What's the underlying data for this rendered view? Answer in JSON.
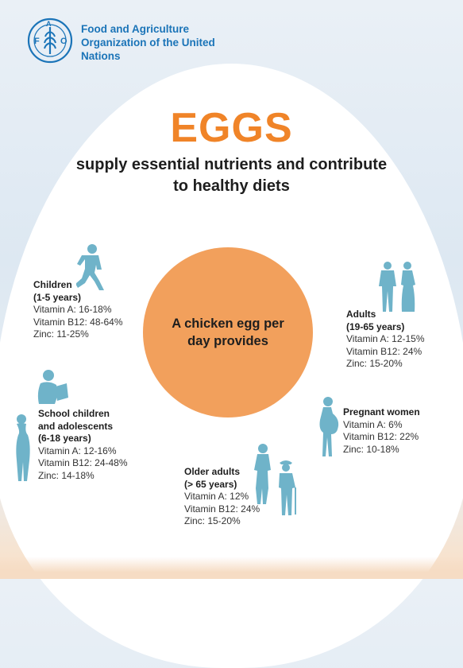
{
  "header": {
    "org_name": "Food and Agriculture Organization of the United Nations",
    "logo_letters": "FAO",
    "logo_motto": "FIAT PANIS"
  },
  "title": "EGGS",
  "subtitle": "supply essential nutrients and contribute to healthy diets",
  "center": "A chicken egg per day provides",
  "groups": {
    "children": {
      "title_line1": "Children",
      "title_line2": "(1-5 years)",
      "vitamin_a": "Vitamin A: 16-18%",
      "vitamin_b12": "Vitamin B12: 48-64%",
      "zinc": "Zinc: 11-25%"
    },
    "school": {
      "title_line1": "School children",
      "title_line2": "and adolescents",
      "title_line3": "(6-18 years)",
      "vitamin_a": "Vitamin A: 12-16%",
      "vitamin_b12": "Vitamin B12: 24-48%",
      "zinc": "Zinc: 14-18%"
    },
    "older": {
      "title_line1": "Older adults",
      "title_line2": "(> 65 years)",
      "vitamin_a": "Vitamin A: 12%",
      "vitamin_b12": "Vitamin B12: 24%",
      "zinc": "Zinc: 15-20%"
    },
    "adults": {
      "title_line1": "Adults",
      "title_line2": "(19-65 years)",
      "vitamin_a": "Vitamin A: 12-15%",
      "vitamin_b12": "Vitamin B12: 24%",
      "zinc": "Zinc: 15-20%"
    },
    "pregnant": {
      "title_line1": "Pregnant women",
      "vitamin_a": "Vitamin A: 6%",
      "vitamin_b12": "Vitamin B12: 22%",
      "zinc": "Zinc: 10-18%"
    }
  },
  "colors": {
    "accent_orange": "#f08428",
    "circle_orange": "#f2a05c",
    "fao_blue": "#1b74b8",
    "figure_blue": "#6fb3c9"
  },
  "icons": [
    "fao-logo",
    "child-running-icon",
    "student-reading-icon",
    "adolescent-girl-icon",
    "older-couple-icon",
    "adult-couple-icon",
    "pregnant-woman-icon"
  ]
}
